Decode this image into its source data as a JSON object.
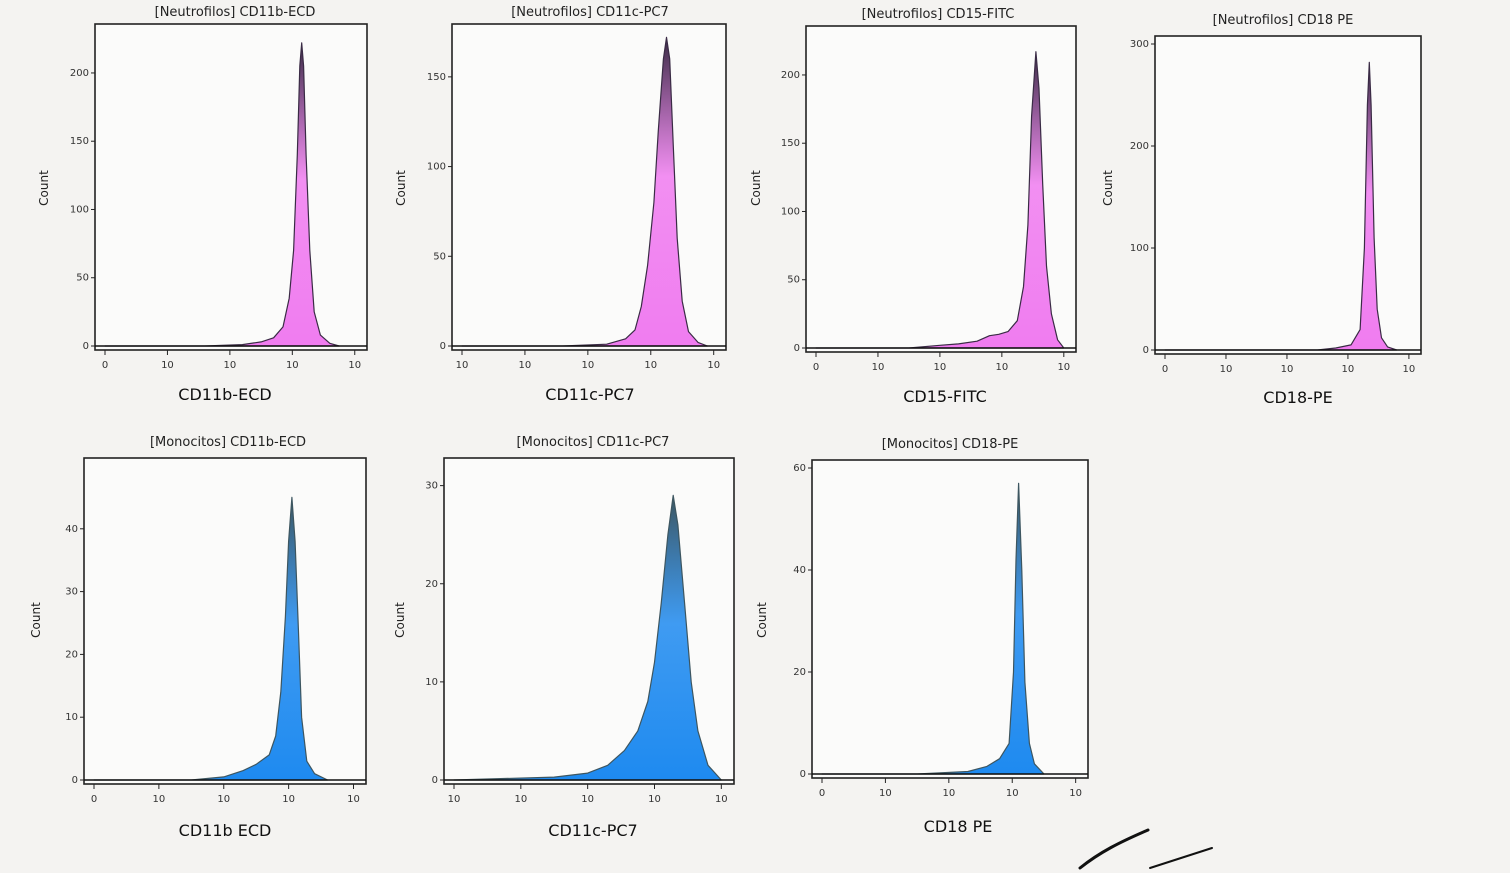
{
  "chart_data": [
    {
      "type": "area",
      "title": "[Neutrofilos] CD11b-ECD",
      "xlabel": "CD11b-ECD",
      "ylabel": "Count",
      "xscale": "log",
      "x_ticks": [
        "0",
        "10",
        "10",
        "10",
        "10"
      ],
      "y_ticks": [
        0,
        50,
        100,
        150,
        200
      ],
      "ylim": [
        0,
        230
      ],
      "peak": {
        "x_log": 3.15,
        "count": 222
      },
      "series": [
        {
          "points": [
            [
              0.0,
              0
            ],
            [
              1.6,
              0
            ],
            [
              2.2,
              1
            ],
            [
              2.5,
              3
            ],
            [
              2.7,
              6
            ],
            [
              2.85,
              14
            ],
            [
              2.95,
              35
            ],
            [
              3.02,
              70
            ],
            [
              3.08,
              140
            ],
            [
              3.12,
              205
            ],
            [
              3.15,
              222
            ],
            [
              3.18,
              205
            ],
            [
              3.22,
              140
            ],
            [
              3.28,
              70
            ],
            [
              3.35,
              25
            ],
            [
              3.45,
              8
            ],
            [
              3.6,
              2
            ],
            [
              3.75,
              0
            ]
          ]
        }
      ],
      "colors": {
        "peak": "#3a2b45",
        "base": "#f07cf0"
      }
    },
    {
      "type": "area",
      "title": "[Neutrofilos] CD11c-PC7",
      "xlabel": "CD11c-PC7",
      "ylabel": "Count",
      "xscale": "log",
      "x_ticks": [
        "10",
        "10",
        "10",
        "10",
        "10"
      ],
      "y_ticks": [
        0,
        50,
        100,
        150
      ],
      "ylim": [
        0,
        175
      ],
      "peak": {
        "x_log": 3.25,
        "count": 172
      },
      "series": [
        {
          "points": [
            [
              0.0,
              0
            ],
            [
              1.6,
              0
            ],
            [
              2.3,
              1
            ],
            [
              2.6,
              4
            ],
            [
              2.75,
              9
            ],
            [
              2.85,
              22
            ],
            [
              2.95,
              45
            ],
            [
              3.05,
              80
            ],
            [
              3.12,
              120
            ],
            [
              3.2,
              160
            ],
            [
              3.25,
              172
            ],
            [
              3.3,
              160
            ],
            [
              3.36,
              110
            ],
            [
              3.42,
              60
            ],
            [
              3.5,
              25
            ],
            [
              3.6,
              8
            ],
            [
              3.75,
              2
            ],
            [
              3.9,
              0
            ]
          ]
        }
      ],
      "colors": {
        "peak": "#3a2b45",
        "base": "#f07cf0"
      }
    },
    {
      "type": "area",
      "title": "[Neutrofilos] CD15-FITC",
      "xlabel": "CD15-FITC",
      "ylabel": "Count",
      "xscale": "log",
      "x_ticks": [
        "0",
        "10",
        "10",
        "10",
        "10"
      ],
      "y_ticks": [
        0,
        50,
        100,
        150,
        200
      ],
      "ylim": [
        0,
        230
      ],
      "peak": {
        "x_log": 3.55,
        "count": 217
      },
      "series": [
        {
          "points": [
            [
              0.0,
              0
            ],
            [
              1.5,
              0
            ],
            [
              2.0,
              2
            ],
            [
              2.3,
              3
            ],
            [
              2.6,
              5
            ],
            [
              2.8,
              9
            ],
            [
              2.95,
              10
            ],
            [
              3.1,
              12
            ],
            [
              3.25,
              20
            ],
            [
              3.35,
              45
            ],
            [
              3.42,
              90
            ],
            [
              3.48,
              170
            ],
            [
              3.55,
              217
            ],
            [
              3.6,
              190
            ],
            [
              3.66,
              120
            ],
            [
              3.72,
              60
            ],
            [
              3.8,
              25
            ],
            [
              3.9,
              6
            ],
            [
              4.0,
              0
            ]
          ]
        }
      ],
      "colors": {
        "peak": "#3a2b45",
        "base": "#f07cf0"
      }
    },
    {
      "type": "area",
      "title": "[Neutrofilos] CD18 PE",
      "xlabel": "CD18-PE",
      "ylabel": "Count",
      "xscale": "log",
      "x_ticks": [
        "0",
        "10",
        "10",
        "10",
        "10"
      ],
      "y_ticks": [
        0,
        100,
        200,
        300
      ],
      "ylim": [
        0,
        300
      ],
      "peak": {
        "x_log": 3.35,
        "count": 282
      },
      "series": [
        {
          "points": [
            [
              0.0,
              0
            ],
            [
              2.5,
              0
            ],
            [
              2.8,
              2
            ],
            [
              3.05,
              5
            ],
            [
              3.2,
              20
            ],
            [
              3.27,
              100
            ],
            [
              3.32,
              240
            ],
            [
              3.35,
              282
            ],
            [
              3.38,
              240
            ],
            [
              3.43,
              110
            ],
            [
              3.48,
              40
            ],
            [
              3.55,
              12
            ],
            [
              3.65,
              3
            ],
            [
              3.8,
              0
            ]
          ]
        }
      ],
      "colors": {
        "peak": "#3a2b45",
        "base": "#f07cf0"
      }
    },
    {
      "type": "area",
      "title": "[Monocitos] CD11b-ECD",
      "xlabel": "CD11b ECD",
      "ylabel": "Count",
      "xscale": "log",
      "x_ticks": [
        "0",
        "10",
        "10",
        "10",
        "10"
      ],
      "y_ticks": [
        0,
        10,
        20,
        30,
        40
      ],
      "ylim": [
        0,
        50
      ],
      "peak": {
        "x_log": 3.05,
        "count": 45
      },
      "series": [
        {
          "points": [
            [
              0.0,
              0
            ],
            [
              1.5,
              0
            ],
            [
              2.0,
              0.5
            ],
            [
              2.3,
              1.5
            ],
            [
              2.5,
              2.5
            ],
            [
              2.7,
              4
            ],
            [
              2.8,
              7
            ],
            [
              2.88,
              14
            ],
            [
              2.95,
              26
            ],
            [
              3.0,
              38
            ],
            [
              3.05,
              45
            ],
            [
              3.1,
              38
            ],
            [
              3.15,
              24
            ],
            [
              3.2,
              10
            ],
            [
              3.28,
              3
            ],
            [
              3.4,
              1
            ],
            [
              3.6,
              0
            ]
          ]
        }
      ],
      "colors": {
        "peak": "#3d5660",
        "base": "#1e8af0"
      }
    },
    {
      "type": "area",
      "title": "[Monocitos] CD11c-PC7",
      "xlabel": "CD11c-PC7",
      "ylabel": "Count",
      "xscale": "log",
      "x_ticks": [
        "10",
        "10",
        "10",
        "10",
        "10"
      ],
      "y_ticks": [
        0,
        10,
        20,
        30
      ],
      "ylim": [
        0,
        32
      ],
      "peak": {
        "x_log": 3.3,
        "count": 29.5
      },
      "series": [
        {
          "points": [
            [
              0.0,
              0
            ],
            [
              1.5,
              0.3
            ],
            [
              2.0,
              0.7
            ],
            [
              2.3,
              1.5
            ],
            [
              2.55,
              3
            ],
            [
              2.75,
              5
            ],
            [
              2.9,
              8
            ],
            [
              3.0,
              12
            ],
            [
              3.1,
              18
            ],
            [
              3.2,
              25
            ],
            [
              3.28,
              29
            ],
            [
              3.35,
              26
            ],
            [
              3.45,
              18
            ],
            [
              3.55,
              10
            ],
            [
              3.65,
              5
            ],
            [
              3.8,
              1.5
            ],
            [
              4.0,
              0
            ]
          ]
        }
      ],
      "colors": {
        "peak": "#3d5660",
        "base": "#1e8af0"
      }
    },
    {
      "type": "area",
      "title": "[Monocitos] CD18-PE",
      "xlabel": "CD18 PE",
      "ylabel": "Count",
      "xscale": "log",
      "x_ticks": [
        "0",
        "10",
        "10",
        "10",
        "10"
      ],
      "y_ticks": [
        0,
        20,
        40,
        60
      ],
      "ylim": [
        0,
        60
      ],
      "peak": {
        "x_log": 3.1,
        "count": 57
      },
      "series": [
        {
          "points": [
            [
              0.0,
              0
            ],
            [
              1.5,
              0
            ],
            [
              2.3,
              0.5
            ],
            [
              2.6,
              1.5
            ],
            [
              2.8,
              3
            ],
            [
              2.95,
              6
            ],
            [
              3.02,
              20
            ],
            [
              3.06,
              42
            ],
            [
              3.1,
              57
            ],
            [
              3.15,
              40
            ],
            [
              3.2,
              18
            ],
            [
              3.27,
              6
            ],
            [
              3.35,
              2
            ],
            [
              3.5,
              0
            ]
          ]
        }
      ],
      "colors": {
        "peak": "#3d5660",
        "base": "#1e8af0"
      }
    }
  ]
}
